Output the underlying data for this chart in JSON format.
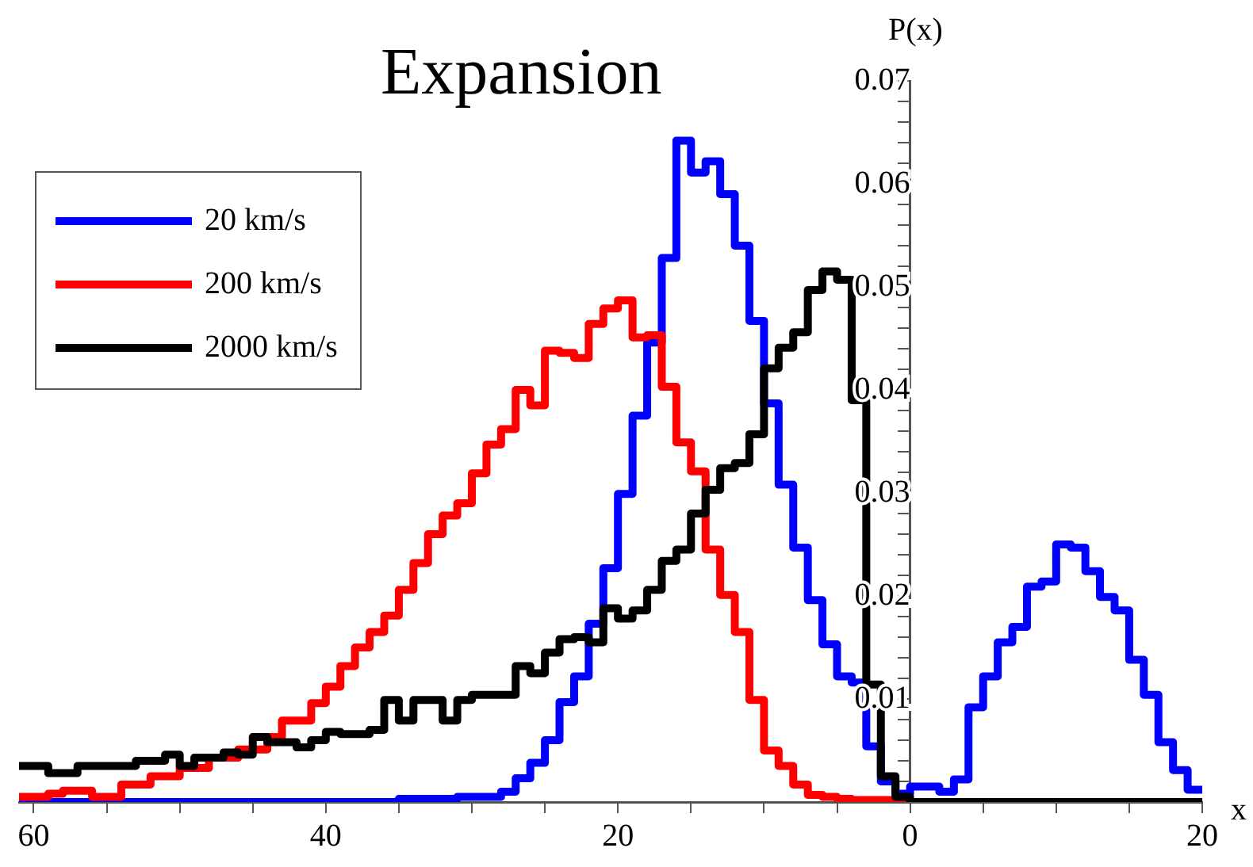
{
  "chart_data": {
    "type": "histogram",
    "title": "Expansion",
    "xlabel": "x",
    "ylabel": "P(x)",
    "bins": [
      -61,
      -60,
      -59,
      -58,
      -57,
      -56,
      -55,
      -54,
      -53,
      -52,
      -51,
      -50,
      -49,
      -48,
      -47,
      -46,
      -45,
      -44,
      -43,
      -42,
      -41,
      -40,
      -39,
      -38,
      -37,
      -36,
      -35,
      -34,
      -33,
      -32,
      -31,
      -30,
      -29,
      -28,
      -27,
      -26,
      -25,
      -24,
      -23,
      -22,
      -21,
      -20,
      -19,
      -18,
      -17,
      -16,
      -15,
      -14,
      -13,
      -12,
      -11,
      -10,
      -9,
      -8,
      -7,
      -6,
      -5,
      -4,
      -3,
      -2,
      -1,
      0,
      1,
      2,
      3,
      4,
      5,
      6,
      7,
      8,
      9,
      10,
      11,
      12,
      13,
      14,
      15,
      16,
      17,
      18,
      19,
      20
    ],
    "series": [
      {
        "name": "20 km/s",
        "color": "#0000ff",
        "values": [
          0,
          0,
          0,
          0,
          0,
          0,
          0,
          0,
          0,
          0,
          0,
          0,
          0,
          0,
          0,
          0,
          0,
          0,
          0,
          0,
          0,
          0,
          0,
          0,
          0,
          0,
          0.0003,
          0.0003,
          0.0003,
          0.0003,
          0.0005,
          0.0005,
          0.0005,
          0.001,
          0.0023,
          0.0038,
          0.006,
          0.0097,
          0.0122,
          0.0173,
          0.0227,
          0.0299,
          0.0375,
          0.0446,
          0.0528,
          0.0642,
          0.0611,
          0.0622,
          0.059,
          0.054,
          0.0467,
          0.0387,
          0.0308,
          0.0247,
          0.0196,
          0.0153,
          0.0122,
          0.0116,
          0.0054,
          0.002,
          0.0008,
          0.0015,
          0.0015,
          0.001,
          0.0022,
          0.0092,
          0.0122,
          0.0155,
          0.017,
          0.0209,
          0.0214,
          0.025,
          0.0247,
          0.0224,
          0.0199,
          0.0186,
          0.0138,
          0.0104,
          0.0058,
          0.0031,
          0.0012
        ]
      },
      {
        "name": "200 km/s",
        "color": "#ff0000",
        "values": [
          0.0005,
          0.0005,
          0.0008,
          0.0011,
          0.0011,
          0.0005,
          0.0005,
          0.0017,
          0.0017,
          0.0025,
          0.0025,
          0.0033,
          0.0033,
          0.0043,
          0.0043,
          0.0051,
          0.0051,
          0.0063,
          0.0079,
          0.0079,
          0.0096,
          0.0112,
          0.0132,
          0.015,
          0.0165,
          0.0181,
          0.0206,
          0.0232,
          0.026,
          0.0278,
          0.029,
          0.0319,
          0.0347,
          0.0362,
          0.04,
          0.0385,
          0.0438,
          0.0436,
          0.0431,
          0.0464,
          0.0479,
          0.0487,
          0.0451,
          0.0453,
          0.0403,
          0.0349,
          0.0321,
          0.0245,
          0.0201,
          0.0165,
          0.0099,
          0.005,
          0.0035,
          0.0017,
          0.0007,
          0.0005,
          0.0003,
          0.0002,
          0.0002,
          0.0002,
          0.0002,
          0,
          0,
          0,
          0,
          0,
          0,
          0,
          0,
          0,
          0,
          0,
          0,
          0,
          0,
          0,
          0,
          0,
          0,
          0,
          0
        ]
      },
      {
        "name": "2000 km/s",
        "color": "#000000",
        "values": [
          0.0035,
          0.0035,
          0.0028,
          0.0028,
          0.0035,
          0.0035,
          0.0035,
          0.0035,
          0.004,
          0.004,
          0.0046,
          0.0035,
          0.0043,
          0.0043,
          0.0048,
          0.0046,
          0.0063,
          0.0058,
          0.0058,
          0.0053,
          0.006,
          0.0068,
          0.0066,
          0.0066,
          0.007,
          0.0099,
          0.0079,
          0.0099,
          0.0099,
          0.0079,
          0.0099,
          0.0104,
          0.0104,
          0.0104,
          0.0132,
          0.0125,
          0.0145,
          0.0158,
          0.016,
          0.0155,
          0.0188,
          0.0178,
          0.0186,
          0.0206,
          0.0234,
          0.0245,
          0.028,
          0.0303,
          0.0324,
          0.0329,
          0.0357,
          0.0421,
          0.0441,
          0.0456,
          0.0497,
          0.0515,
          0.0507,
          0.039,
          0.0114,
          0.0025,
          0.0005,
          0,
          0,
          0,
          0,
          0,
          0,
          0,
          0,
          0,
          0,
          0,
          0,
          0,
          0,
          0,
          0,
          0,
          0,
          0,
          0
        ]
      }
    ],
    "xlim": [
      -61,
      20
    ],
    "xticks": [
      {
        "value": -60,
        "label": "60"
      },
      {
        "value": -55,
        "label": null
      },
      {
        "value": -50,
        "label": null
      },
      {
        "value": -45,
        "label": null
      },
      {
        "value": -40,
        "label": "40"
      },
      {
        "value": -35,
        "label": null
      },
      {
        "value": -30,
        "label": null
      },
      {
        "value": -25,
        "label": null
      },
      {
        "value": -20,
        "label": "20"
      },
      {
        "value": -15,
        "label": null
      },
      {
        "value": -10,
        "label": null
      },
      {
        "value": -5,
        "label": null
      },
      0,
      {
        "value": 5,
        "label": null
      },
      {
        "value": 10,
        "label": null
      },
      {
        "value": 15,
        "label": null
      },
      20
    ],
    "ylim": [
      0,
      0.07
    ],
    "yticks": [
      {
        "value": 0.002,
        "label": null
      },
      {
        "value": 0.004,
        "label": null
      },
      {
        "value": 0.006,
        "label": null
      },
      {
        "value": 0.008,
        "label": null
      },
      0.01,
      {
        "value": 0.012,
        "label": null
      },
      {
        "value": 0.014,
        "label": null
      },
      {
        "value": 0.016,
        "label": null
      },
      {
        "value": 0.018,
        "label": null
      },
      0.02,
      {
        "value": 0.022,
        "label": null
      },
      {
        "value": 0.024,
        "label": null
      },
      {
        "value": 0.026,
        "label": null
      },
      {
        "value": 0.028,
        "label": null
      },
      0.03,
      {
        "value": 0.032,
        "label": null
      },
      {
        "value": 0.034,
        "label": null
      },
      {
        "value": 0.036,
        "label": null
      },
      {
        "value": 0.038,
        "label": null
      },
      0.04,
      {
        "value": 0.042,
        "label": null
      },
      {
        "value": 0.044,
        "label": null
      },
      {
        "value": 0.046,
        "label": null
      },
      {
        "value": 0.048,
        "label": null
      },
      0.05,
      {
        "value": 0.052,
        "label": null
      },
      {
        "value": 0.054,
        "label": null
      },
      {
        "value": 0.056,
        "label": null
      },
      {
        "value": 0.058,
        "label": null
      },
      0.06,
      {
        "value": 0.062,
        "label": null
      },
      {
        "value": 0.064,
        "label": null
      },
      {
        "value": 0.066,
        "label": null
      },
      {
        "value": 0.068,
        "label": null
      },
      0.07
    ],
    "grid": false,
    "legend": "top left",
    "line_style": "solid",
    "marker": "none"
  }
}
